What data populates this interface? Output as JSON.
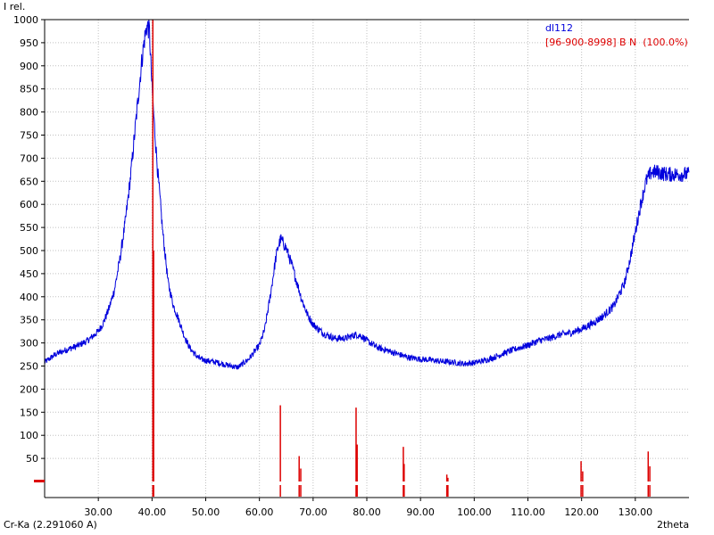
{
  "chart_data": {
    "type": "line",
    "title": "",
    "ylabel": "I rel.",
    "xlabel": "2theta",
    "radiation_label": "Cr-Ka (2.291060 A)",
    "xlim": [
      20,
      140
    ],
    "ylim": [
      -5,
      1000
    ],
    "x_ticks": [
      30,
      40,
      50,
      60,
      70,
      80,
      90,
      100,
      110,
      120,
      130
    ],
    "x_tick_labels": [
      "30.00",
      "40.00",
      "50.00",
      "60.00",
      "70.00",
      "80.00",
      "90.00",
      "100.00",
      "110.00",
      "120.00",
      "130.00"
    ],
    "y_ticks": [
      0,
      50,
      100,
      150,
      200,
      250,
      300,
      350,
      400,
      450,
      500,
      550,
      600,
      650,
      700,
      750,
      800,
      850,
      900,
      950,
      1000
    ],
    "y_tick_labels": [
      "",
      "50",
      "100",
      "150",
      "200",
      "250",
      "300",
      "350",
      "400",
      "450",
      "500",
      "550",
      "600",
      "650",
      "700",
      "750",
      "800",
      "850",
      "900",
      "950",
      "1000"
    ],
    "grid": true,
    "legend_position": "top-right",
    "colors": {
      "pattern": "#0000dd",
      "reference": "#dd0000",
      "grid": "#c0c0c0",
      "axis": "#000000"
    },
    "series": [
      {
        "name": "dl112",
        "kind": "line",
        "x": [
          20,
          22,
          24,
          26,
          28,
          30,
          31,
          32,
          33,
          34,
          35,
          36,
          37,
          38,
          38.5,
          39,
          39.5,
          40,
          40.5,
          41,
          42,
          43,
          44,
          45,
          46,
          47,
          48,
          49,
          50,
          52,
          54,
          56,
          58,
          60,
          61,
          62,
          63,
          63.5,
          64,
          65,
          66,
          67,
          68,
          69,
          70,
          72,
          74,
          76,
          78,
          79,
          80,
          82,
          84,
          86,
          88,
          90,
          92,
          94,
          96,
          98,
          100,
          102,
          104,
          106,
          108,
          110,
          112,
          114,
          116,
          118,
          120,
          122,
          124,
          126,
          128,
          129,
          130,
          131,
          132,
          133,
          134,
          136,
          138,
          140
        ],
        "y": [
          258,
          275,
          285,
          293,
          305,
          325,
          345,
          375,
          415,
          480,
          560,
          660,
          780,
          900,
          950,
          985,
          980,
          850,
          760,
          680,
          540,
          430,
          380,
          350,
          315,
          290,
          275,
          265,
          262,
          258,
          252,
          247,
          265,
          295,
          330,
          400,
          480,
          510,
          525,
          505,
          470,
          430,
          390,
          360,
          340,
          320,
          310,
          310,
          318,
          315,
          305,
          290,
          283,
          275,
          268,
          265,
          263,
          260,
          258,
          255,
          257,
          262,
          270,
          280,
          288,
          295,
          305,
          310,
          318,
          322,
          330,
          342,
          358,
          380,
          430,
          480,
          540,
          600,
          650,
          670,
          670,
          665,
          665,
          665
        ]
      },
      {
        "name": "[96-900-8998] B N  (100.0%)",
        "kind": "sticks",
        "x": [
          40.15,
          40.3,
          63.9,
          67.4,
          67.7,
          78.0,
          78.2,
          86.8,
          86.95,
          94.9,
          95.1,
          119.9,
          120.2,
          132.4,
          132.7
        ],
        "y": [
          1000,
          500,
          165,
          55,
          28,
          160,
          80,
          75,
          38,
          15,
          8,
          44,
          22,
          65,
          33
        ]
      }
    ]
  }
}
